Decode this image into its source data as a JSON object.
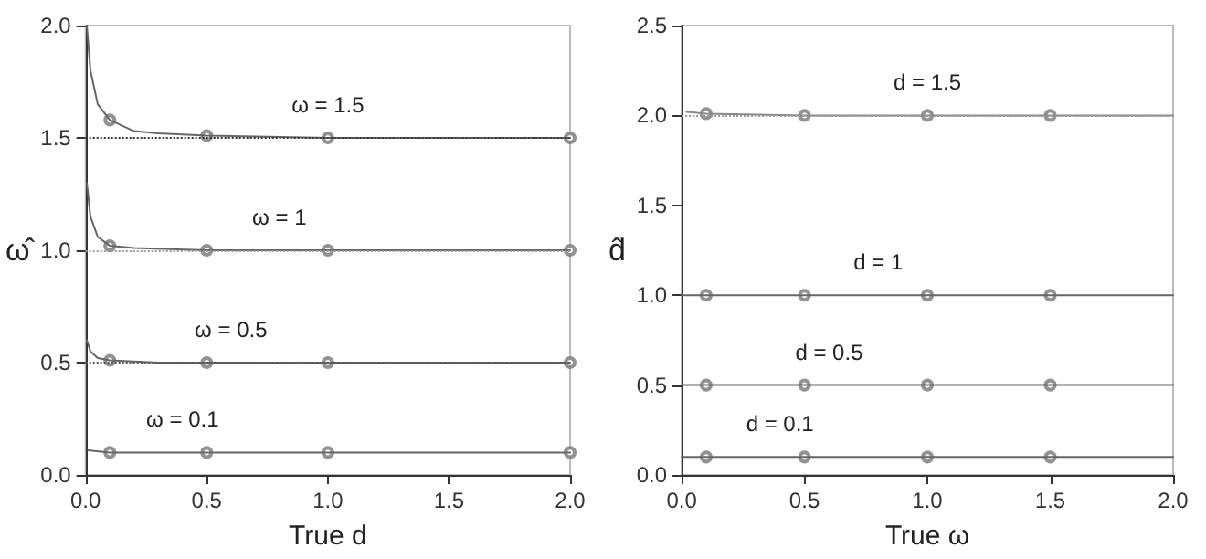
{
  "chart_data": [
    {
      "type": "line",
      "xlabel": "True d",
      "ylabel": "ω̂",
      "xlim": [
        0,
        2
      ],
      "xticks": [
        {
          "value": 0,
          "label": "0.0"
        },
        {
          "value": 0.5,
          "label": "0.5"
        },
        {
          "value": 1,
          "label": "1.0"
        },
        {
          "value": 1.5,
          "label": "1.5"
        },
        {
          "value": 2,
          "label": "2.0"
        }
      ],
      "ylim": [
        0,
        2
      ],
      "yticks": [
        {
          "value": 0,
          "label": "0.0"
        },
        {
          "value": 0.5,
          "label": "0.5"
        },
        {
          "value": 1,
          "label": "1.0"
        },
        {
          "value": 1.5,
          "label": "1.5"
        },
        {
          "value": 2,
          "label": "2.0"
        }
      ],
      "grid": false,
      "line_style": "solid",
      "series": [
        {
          "type": "line",
          "marker": "none",
          "color": "#666666",
          "x": [
            0.005,
            0.02,
            0.05,
            0.1,
            0.2,
            0.3,
            0.5,
            1,
            2
          ],
          "values": [
            2.0,
            1.8,
            1.65,
            1.58,
            1.53,
            1.52,
            1.51,
            1.5,
            1.5
          ]
        },
        {
          "type": "line",
          "marker": "none",
          "color": "#666666",
          "x": [
            0.005,
            0.02,
            0.05,
            0.1,
            0.2,
            0.5,
            1,
            2
          ],
          "values": [
            1.3,
            1.15,
            1.06,
            1.02,
            1.01,
            1.0,
            1.0,
            1.0
          ]
        },
        {
          "type": "line",
          "marker": "none",
          "color": "#666666",
          "x": [
            0.005,
            0.02,
            0.05,
            0.1,
            0.3,
            1,
            2
          ],
          "values": [
            0.6,
            0.55,
            0.52,
            0.51,
            0.5,
            0.5,
            0.5
          ]
        },
        {
          "type": "line",
          "marker": "none",
          "color": "#666666",
          "x": [
            0.01,
            0.1,
            1,
            2
          ],
          "values": [
            0.11,
            0.1,
            0.1,
            0.1
          ]
        },
        {
          "type": "scatter",
          "marker": "circle",
          "color": "#777777",
          "x": [
            0.1,
            0.5,
            1,
            2
          ],
          "values": [
            1.58,
            1.51,
            1.5,
            1.5
          ]
        },
        {
          "type": "scatter",
          "marker": "circle",
          "color": "#777777",
          "x": [
            0.1,
            0.5,
            1,
            2
          ],
          "values": [
            1.02,
            1.0,
            1.0,
            1.0
          ]
        },
        {
          "type": "scatter",
          "marker": "circle",
          "color": "#777777",
          "x": [
            0.1,
            0.5,
            1,
            2
          ],
          "values": [
            0.51,
            0.5,
            0.5,
            0.5
          ]
        },
        {
          "type": "scatter",
          "marker": "circle",
          "color": "#777777",
          "x": [
            0.1,
            0.5,
            1,
            2
          ],
          "values": [
            0.1,
            0.1,
            0.1,
            0.1
          ]
        }
      ],
      "ref_lines": [
        {
          "axis": "y",
          "value": 1.5,
          "color": "#333333",
          "line_style": "dotted"
        },
        {
          "axis": "y",
          "value": 1.0,
          "color": "#999999",
          "line_style": "dotted"
        },
        {
          "axis": "y",
          "value": 0.5,
          "color": "#555555",
          "line_style": "dotted"
        }
      ],
      "annotations": [
        "ω = 1.5",
        "ω = 1",
        "ω = 0.5",
        "ω = 0.1"
      ]
    },
    {
      "type": "line",
      "xlabel": "True ω",
      "ylabel": "d̂",
      "xlim": [
        0,
        2
      ],
      "xticks": [
        {
          "value": 0,
          "label": "0.0"
        },
        {
          "value": 0.5,
          "label": "0.5"
        },
        {
          "value": 1,
          "label": "1.0"
        },
        {
          "value": 1.5,
          "label": "1.5"
        },
        {
          "value": 2,
          "label": "2.0"
        }
      ],
      "ylim": [
        0,
        2.5
      ],
      "yticks": [
        {
          "value": 0,
          "label": "0.0"
        },
        {
          "value": 0.5,
          "label": "0.5"
        },
        {
          "value": 1,
          "label": "1.0"
        },
        {
          "value": 1.5,
          "label": "1.5"
        },
        {
          "value": 2,
          "label": "2.0"
        },
        {
          "value": 2.5,
          "label": "2.5"
        }
      ],
      "grid": false,
      "line_style": "solid",
      "series": [
        {
          "type": "line",
          "marker": "none",
          "color": "#888888",
          "x": [
            0.02,
            0.1,
            0.5,
            2
          ],
          "values": [
            2.02,
            2.01,
            2.0,
            2.0
          ]
        },
        {
          "type": "line",
          "marker": "none",
          "color": "#666666",
          "x": [
            0,
            2
          ],
          "values": [
            1.0,
            1.0
          ]
        },
        {
          "type": "line",
          "marker": "none",
          "color": "#666666",
          "x": [
            0,
            2
          ],
          "values": [
            0.5,
            0.5
          ]
        },
        {
          "type": "line",
          "marker": "none",
          "color": "#666666",
          "x": [
            0,
            2
          ],
          "values": [
            0.1,
            0.1
          ]
        },
        {
          "type": "scatter",
          "marker": "circle",
          "color": "#777777",
          "x": [
            0.1,
            0.5,
            1,
            1.5
          ],
          "values": [
            2.01,
            2.0,
            2.0,
            2.0
          ]
        },
        {
          "type": "scatter",
          "marker": "circle",
          "color": "#777777",
          "x": [
            0.1,
            0.5,
            1,
            1.5
          ],
          "values": [
            1.0,
            1.0,
            1.0,
            1.0
          ]
        },
        {
          "type": "scatter",
          "marker": "circle",
          "color": "#777777",
          "x": [
            0.1,
            0.5,
            1,
            1.5
          ],
          "values": [
            0.5,
            0.5,
            0.5,
            0.5
          ]
        },
        {
          "type": "scatter",
          "marker": "circle",
          "color": "#777777",
          "x": [
            0.1,
            0.5,
            1,
            1.5
          ],
          "values": [
            0.1,
            0.1,
            0.1,
            0.1
          ]
        }
      ],
      "ref_lines": [
        {
          "axis": "y",
          "value": 2.0,
          "color": "#999999",
          "line_style": "dotted"
        }
      ],
      "annotations": [
        "d = 1.5",
        "d = 1",
        "d = 0.5",
        "d = 0.1"
      ]
    }
  ]
}
